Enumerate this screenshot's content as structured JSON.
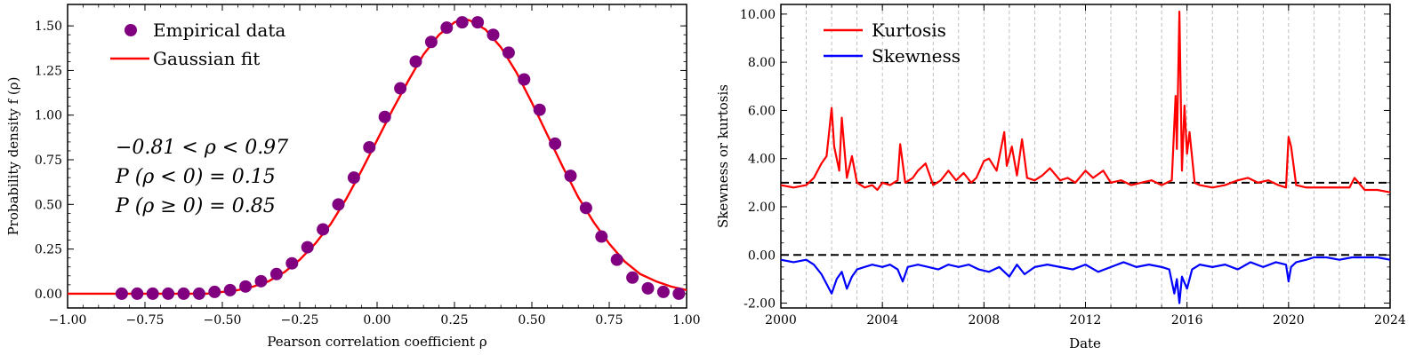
{
  "chart_data": [
    {
      "type": "scatter+line",
      "title": "",
      "xlabel": "Pearson correlation coefficient ρ",
      "ylabel": "Probability density f (ρ)",
      "xlim": [
        -1.0,
        1.0
      ],
      "ylim": [
        -0.08,
        1.62
      ],
      "xticks": [
        -1.0,
        -0.75,
        -0.5,
        -0.25,
        0.0,
        0.25,
        0.5,
        0.75,
        1.0
      ],
      "xtick_labels": [
        "−1.00",
        "−0.75",
        "−0.50",
        "−0.25",
        "0.00",
        "0.25",
        "0.50",
        "0.75",
        "1.00"
      ],
      "yticks": [
        0.0,
        0.25,
        0.5,
        0.75,
        1.0,
        1.25,
        1.5
      ],
      "ytick_labels": [
        "0.00",
        "0.25",
        "0.50",
        "0.75",
        "1.00",
        "1.25",
        "1.50"
      ],
      "legend": {
        "placement": "top-left",
        "entries": [
          {
            "label": "Empirical data",
            "kind": "marker",
            "color": "#800080"
          },
          {
            "label": "Gaussian fit",
            "kind": "line",
            "color": "#ff0000"
          }
        ]
      },
      "annotations": [
        "−0.81 < ρ < 0.97",
        "P (ρ < 0) = 0.15",
        "P (ρ ≥ 0) = 0.85"
      ],
      "series": [
        {
          "name": "Empirical data",
          "color": "#800080",
          "x": [
            -0.825,
            -0.775,
            -0.725,
            -0.675,
            -0.625,
            -0.575,
            -0.525,
            -0.475,
            -0.425,
            -0.375,
            -0.325,
            -0.275,
            -0.225,
            -0.175,
            -0.125,
            -0.075,
            -0.025,
            0.025,
            0.075,
            0.125,
            0.175,
            0.225,
            0.275,
            0.325,
            0.375,
            0.425,
            0.475,
            0.525,
            0.575,
            0.625,
            0.675,
            0.725,
            0.775,
            0.825,
            0.875,
            0.925,
            0.975
          ],
          "y": [
            0.0,
            0.0,
            0.0,
            0.0,
            0.0,
            0.0,
            0.01,
            0.02,
            0.04,
            0.07,
            0.11,
            0.17,
            0.26,
            0.36,
            0.5,
            0.65,
            0.82,
            0.99,
            1.15,
            1.3,
            1.41,
            1.49,
            1.52,
            1.52,
            1.45,
            1.35,
            1.2,
            1.03,
            0.84,
            0.66,
            0.48,
            0.32,
            0.19,
            0.09,
            0.03,
            0.01,
            0.0
          ]
        },
        {
          "name": "Gaussian fit",
          "color": "#ff0000",
          "type": "line",
          "x": [
            -1.0,
            -0.9,
            -0.8,
            -0.7,
            -0.6,
            -0.55,
            -0.5,
            -0.45,
            -0.4,
            -0.35,
            -0.3,
            -0.25,
            -0.2,
            -0.15,
            -0.1,
            -0.05,
            0.0,
            0.05,
            0.1,
            0.15,
            0.2,
            0.25,
            0.28,
            0.3,
            0.35,
            0.4,
            0.45,
            0.5,
            0.55,
            0.6,
            0.65,
            0.7,
            0.75,
            0.8,
            0.85,
            0.9,
            0.95,
            1.0
          ],
          "y": [
            0.0,
            0.0,
            0.0,
            0.0,
            0.0,
            0.0,
            0.01,
            0.02,
            0.04,
            0.07,
            0.12,
            0.19,
            0.28,
            0.39,
            0.53,
            0.69,
            0.86,
            1.03,
            1.19,
            1.34,
            1.45,
            1.52,
            1.54,
            1.53,
            1.48,
            1.38,
            1.24,
            1.07,
            0.89,
            0.71,
            0.54,
            0.4,
            0.28,
            0.18,
            0.11,
            0.07,
            0.04,
            0.02
          ]
        }
      ]
    },
    {
      "type": "line",
      "title": "",
      "xlabel": "Date",
      "ylabel": "Skewness or kurtosis",
      "xlim": [
        2000,
        2024
      ],
      "ylim": [
        -2.2,
        10.4
      ],
      "xticks": [
        2000,
        2004,
        2008,
        2012,
        2016,
        2020,
        2024
      ],
      "xtick_labels": [
        "2000",
        "2004",
        "2008",
        "2012",
        "2016",
        "2020",
        "2024"
      ],
      "yticks": [
        -2.0,
        0.0,
        2.0,
        4.0,
        6.0,
        8.0,
        10.0
      ],
      "ytick_labels": [
        "-2.00",
        "0.00",
        "2.00",
        "4.00",
        "6.00",
        "8.00",
        "10.00"
      ],
      "grid": "vertical dashed at yearly ticks",
      "reference_lines": [
        3.0,
        0.0
      ],
      "legend": {
        "placement": "top-left",
        "entries": [
          {
            "label": "Kurtosis",
            "color": "#ff0000"
          },
          {
            "label": "Skewness",
            "color": "#0000ff"
          }
        ]
      },
      "series": [
        {
          "name": "Kurtosis",
          "color": "#ff0000",
          "x": [
            2000.0,
            2000.5,
            2001.0,
            2001.3,
            2001.6,
            2001.8,
            2002.0,
            2002.1,
            2002.3,
            2002.4,
            2002.6,
            2002.8,
            2003.0,
            2003.3,
            2003.6,
            2003.8,
            2004.0,
            2004.3,
            2004.6,
            2004.7,
            2004.9,
            2005.2,
            2005.4,
            2005.7,
            2006.0,
            2006.3,
            2006.6,
            2006.9,
            2007.2,
            2007.5,
            2007.7,
            2008.0,
            2008.2,
            2008.5,
            2008.8,
            2008.9,
            2009.1,
            2009.3,
            2009.5,
            2009.7,
            2010.0,
            2010.3,
            2010.6,
            2011.0,
            2011.3,
            2011.6,
            2012.0,
            2012.3,
            2012.7,
            2013.0,
            2013.4,
            2013.8,
            2014.2,
            2014.6,
            2015.0,
            2015.2,
            2015.4,
            2015.55,
            2015.6,
            2015.7,
            2015.8,
            2015.9,
            2016.0,
            2016.1,
            2016.3,
            2016.5,
            2017.0,
            2017.5,
            2018.0,
            2018.4,
            2018.8,
            2019.2,
            2019.6,
            2019.9,
            2020.0,
            2020.1,
            2020.3,
            2020.7,
            2021.0,
            2021.5,
            2022.0,
            2022.4,
            2022.6,
            2023.0,
            2023.5,
            2024.0
          ],
          "y": [
            2.9,
            2.8,
            2.9,
            3.2,
            3.8,
            4.1,
            6.1,
            4.5,
            3.5,
            5.7,
            3.2,
            4.1,
            3.0,
            2.8,
            2.9,
            2.7,
            3.0,
            2.9,
            3.1,
            4.6,
            3.0,
            3.2,
            3.5,
            3.8,
            2.9,
            3.1,
            3.5,
            3.1,
            3.4,
            3.0,
            3.2,
            3.9,
            4.0,
            3.5,
            5.1,
            3.7,
            4.5,
            3.3,
            4.8,
            3.2,
            3.1,
            3.3,
            3.6,
            3.1,
            3.2,
            3.0,
            3.5,
            3.2,
            3.5,
            3.0,
            3.1,
            2.9,
            3.0,
            3.1,
            2.9,
            3.0,
            3.1,
            6.6,
            4.4,
            10.1,
            3.5,
            6.2,
            4.2,
            5.1,
            3.0,
            2.9,
            2.8,
            2.9,
            3.1,
            3.2,
            3.0,
            3.1,
            2.9,
            2.8,
            4.9,
            4.5,
            2.9,
            2.8,
            2.8,
            2.8,
            2.8,
            2.8,
            3.2,
            2.7,
            2.7,
            2.6
          ]
        },
        {
          "name": "Skewness",
          "color": "#0000ff",
          "x": [
            2000.0,
            2000.5,
            2001.0,
            2001.3,
            2001.6,
            2001.8,
            2002.0,
            2002.2,
            2002.4,
            2002.6,
            2002.8,
            2003.0,
            2003.3,
            2003.6,
            2004.0,
            2004.3,
            2004.6,
            2004.8,
            2005.0,
            2005.4,
            2005.8,
            2006.2,
            2006.6,
            2007.0,
            2007.4,
            2007.8,
            2008.2,
            2008.6,
            2009.0,
            2009.3,
            2009.6,
            2010.0,
            2010.5,
            2011.0,
            2011.5,
            2012.0,
            2012.5,
            2013.0,
            2013.5,
            2014.0,
            2014.5,
            2015.0,
            2015.3,
            2015.5,
            2015.6,
            2015.7,
            2015.8,
            2016.0,
            2016.2,
            2016.5,
            2017.0,
            2017.5,
            2018.0,
            2018.5,
            2019.0,
            2019.5,
            2019.9,
            2020.0,
            2020.1,
            2020.3,
            2020.7,
            2021.0,
            2021.5,
            2022.0,
            2022.5,
            2023.0,
            2023.5,
            2024.0
          ],
          "y": [
            -0.2,
            -0.3,
            -0.2,
            -0.4,
            -0.8,
            -1.2,
            -1.6,
            -1.0,
            -0.7,
            -1.4,
            -0.9,
            -0.6,
            -0.5,
            -0.4,
            -0.5,
            -0.4,
            -0.6,
            -1.1,
            -0.5,
            -0.4,
            -0.5,
            -0.6,
            -0.4,
            -0.5,
            -0.4,
            -0.6,
            -0.7,
            -0.5,
            -0.9,
            -0.4,
            -0.8,
            -0.5,
            -0.4,
            -0.5,
            -0.6,
            -0.4,
            -0.7,
            -0.5,
            -0.3,
            -0.5,
            -0.4,
            -0.5,
            -0.6,
            -1.6,
            -1.0,
            -2.0,
            -0.9,
            -1.4,
            -0.6,
            -0.4,
            -0.5,
            -0.4,
            -0.6,
            -0.3,
            -0.5,
            -0.3,
            -0.4,
            -1.1,
            -0.5,
            -0.3,
            -0.2,
            -0.1,
            -0.1,
            -0.2,
            -0.1,
            -0.1,
            -0.1,
            -0.2
          ]
        }
      ]
    }
  ]
}
